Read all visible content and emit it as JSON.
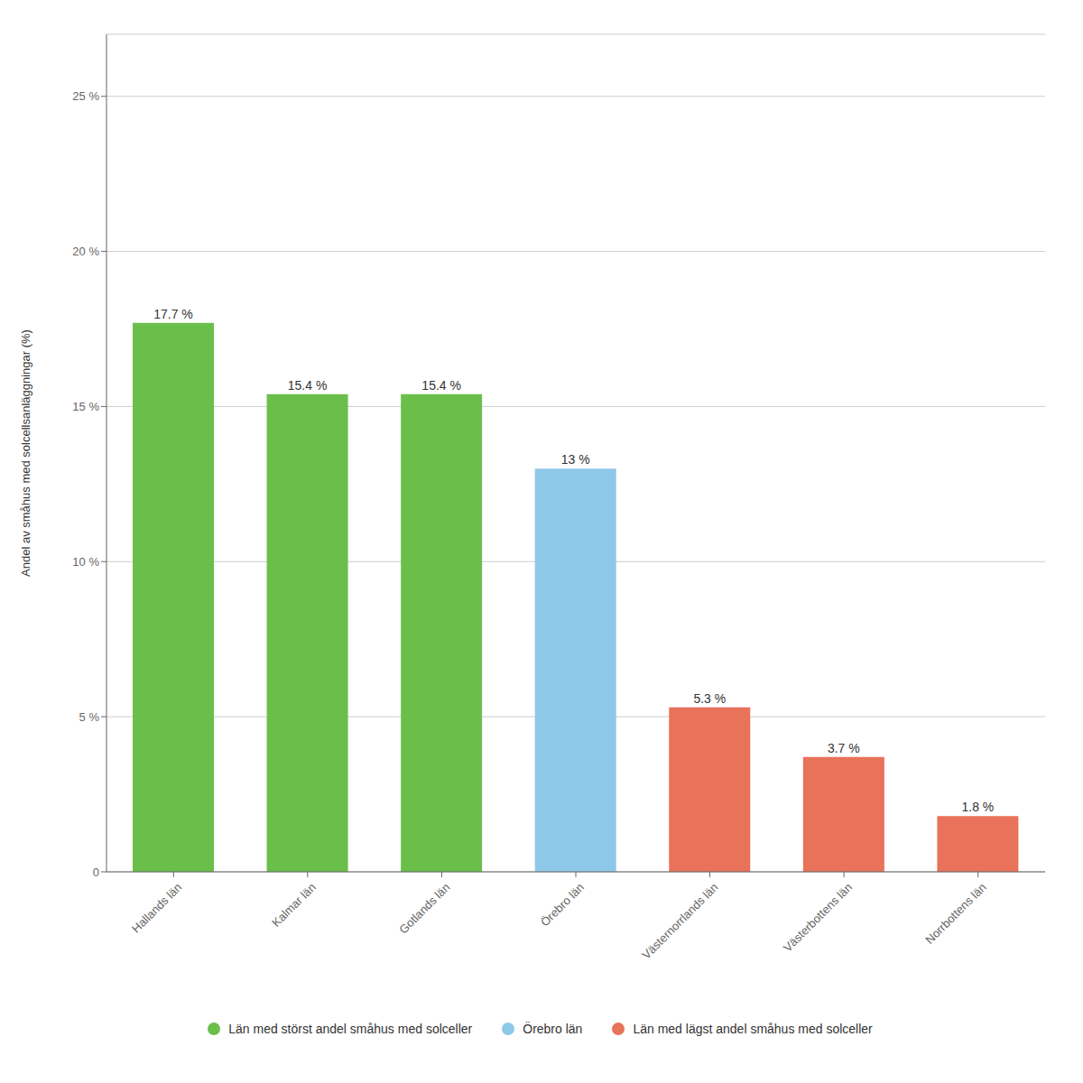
{
  "chart_data": {
    "type": "bar",
    "categories": [
      "Hallands län",
      "Kalmar län",
      "Gotlands län",
      "Örebro län",
      "Västernorrlands län",
      "Västerbottens län",
      "Norrbottens län"
    ],
    "values": [
      17.7,
      15.4,
      15.4,
      13.0,
      5.3,
      3.7,
      1.8
    ],
    "value_labels": [
      "17.7 %",
      "15.4 %",
      "15.4 %",
      "13 %",
      "5.3 %",
      "3.7 %",
      "1.8 %"
    ],
    "data_labels": true,
    "colors": [
      "#6abf4b",
      "#6abf4b",
      "#6abf4b",
      "#8ec8e8",
      "#e8725a",
      "#e8725a",
      "#e8725a"
    ],
    "ylabel": "Andel av småhus med solcellsanläggningar (%)",
    "ylim": [
      0,
      27
    ],
    "yticks": [
      0,
      {
        "value": 5,
        "label": "5 %"
      },
      {
        "value": 10,
        "label": "10 %"
      },
      {
        "value": 15,
        "label": "15 %"
      },
      {
        "value": 20,
        "label": "20 %"
      },
      {
        "value": 25,
        "label": "25 %"
      }
    ],
    "grid": true,
    "legend": "bottom",
    "legend_entries": [
      {
        "name": "Län med störst andel småhus med solceller",
        "color": "#6abf4b"
      },
      {
        "name": "Örebro län",
        "color": "#8ec8e8"
      },
      {
        "name": "Län med lägst andel småhus med solceller",
        "color": "#e8725a"
      }
    ]
  }
}
